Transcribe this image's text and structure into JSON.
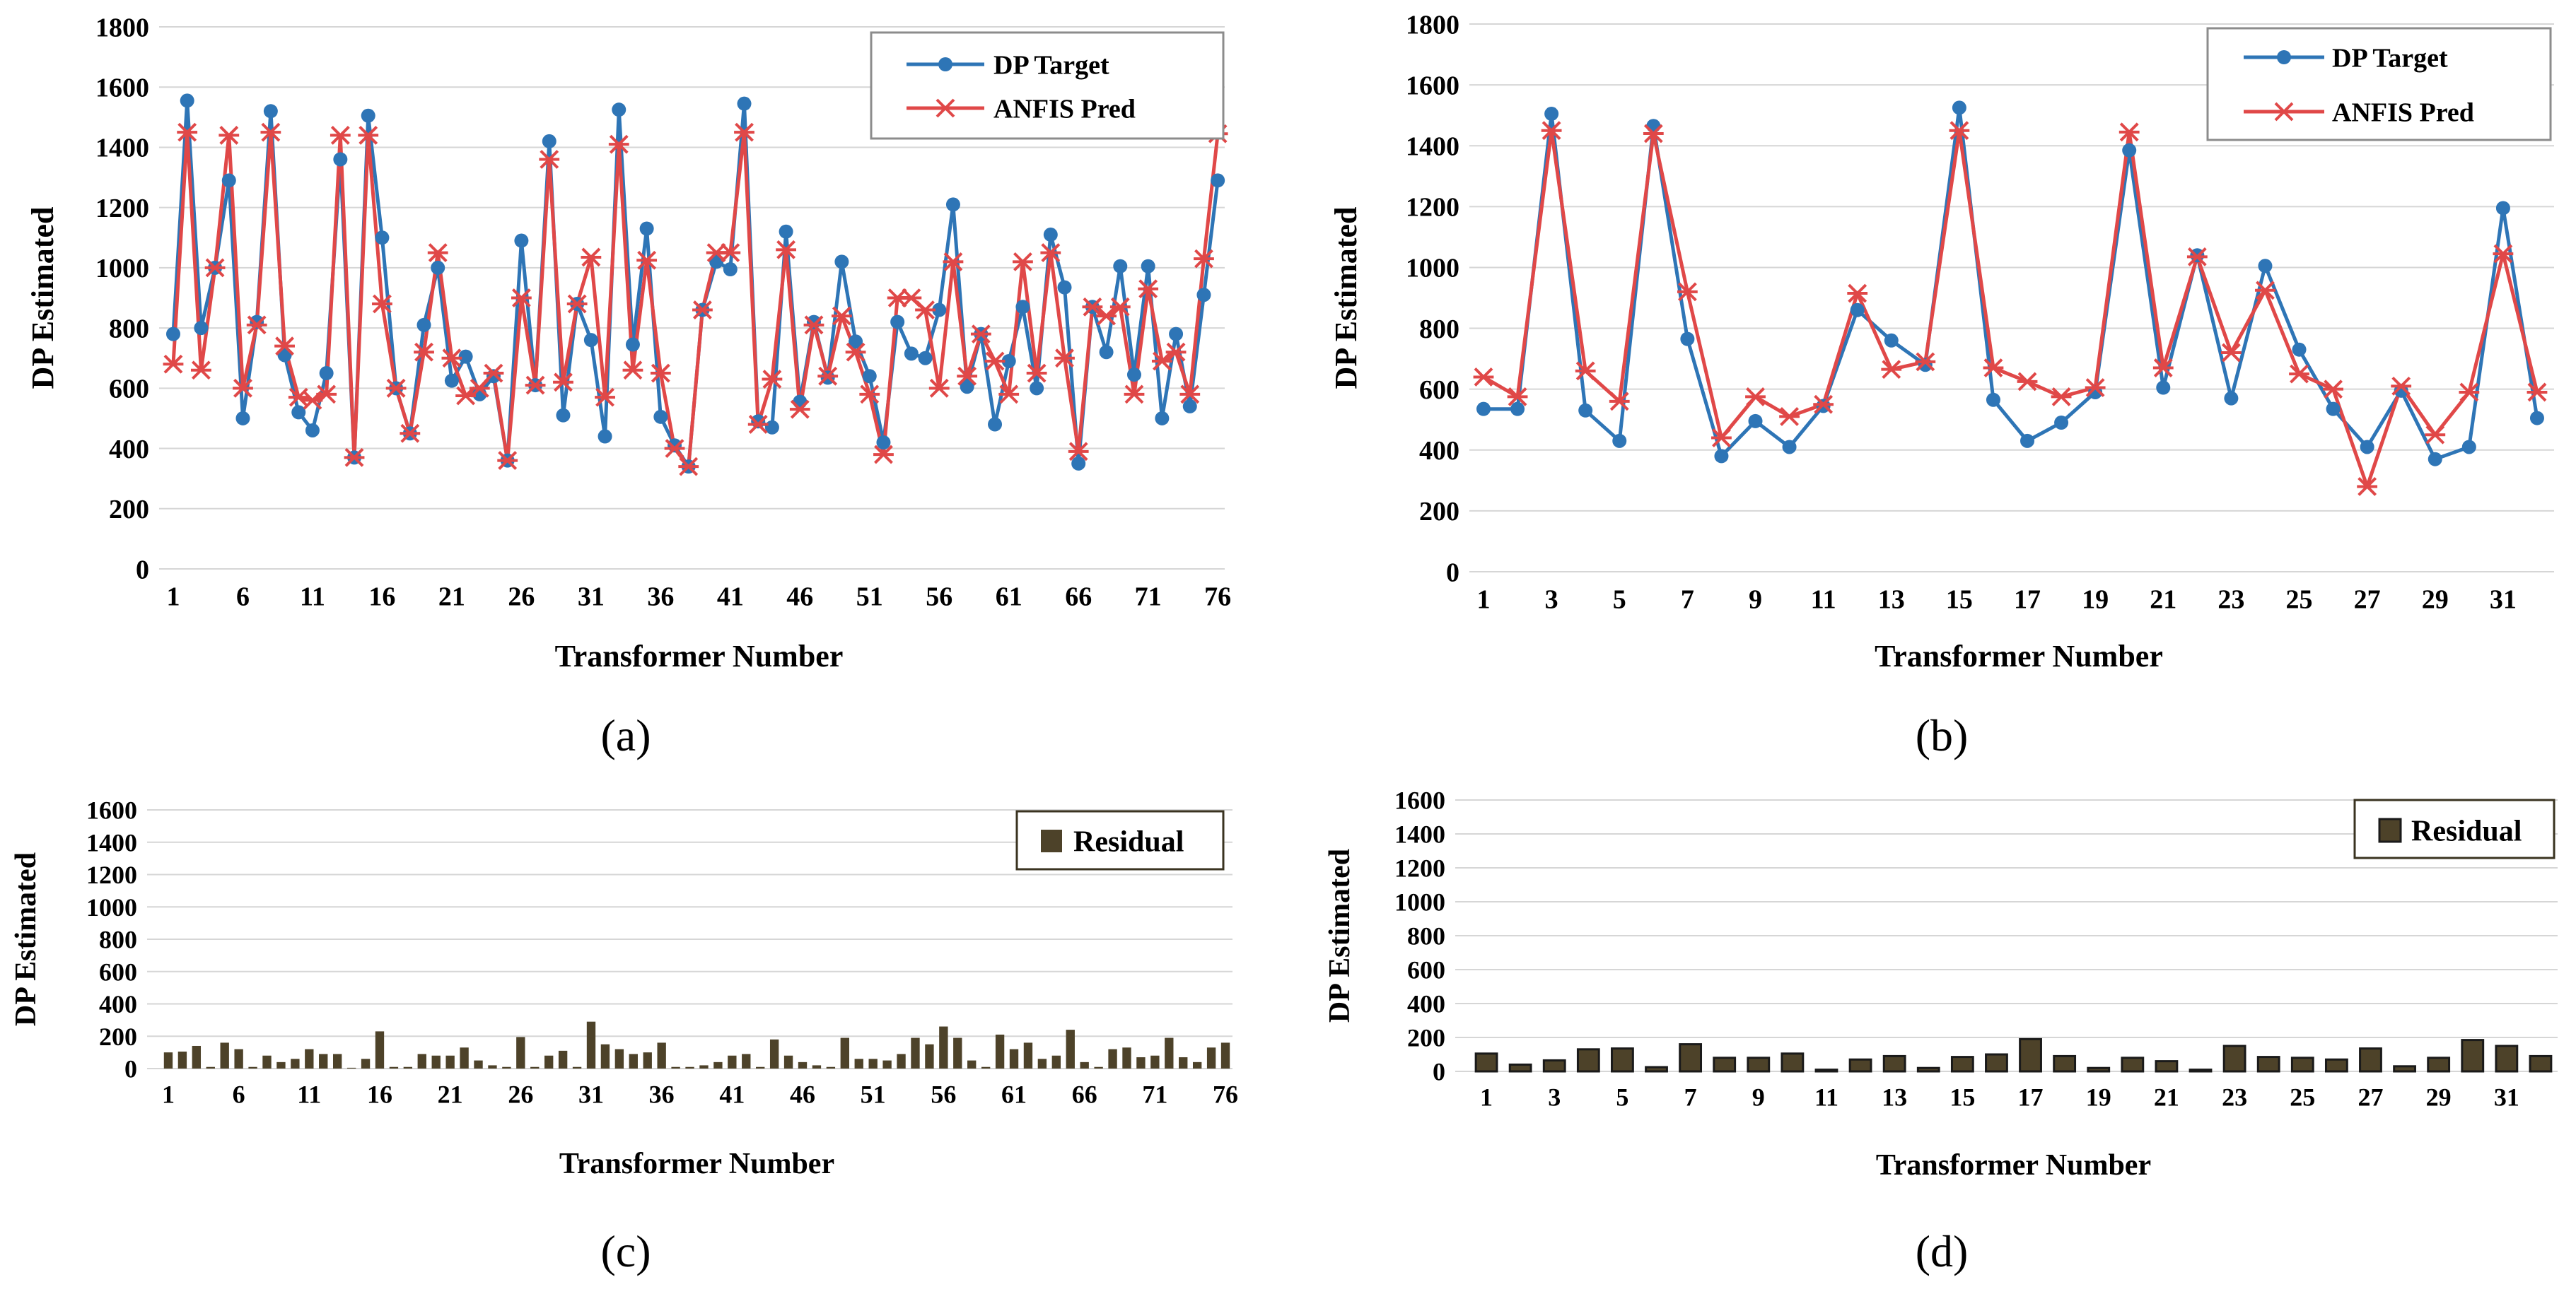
{
  "chart_data": [
    {
      "id": "a",
      "type": "line",
      "panel_label": "(a)",
      "xlabel": "Transformer Number",
      "ylabel": "DP Estimated",
      "ylim": [
        0,
        1800
      ],
      "yticks": [
        0,
        200,
        400,
        600,
        800,
        1000,
        1200,
        1400,
        1600,
        1800
      ],
      "xtick_labels": [
        "1",
        "6",
        "11",
        "16",
        "21",
        "26",
        "31",
        "36",
        "41",
        "46",
        "51",
        "56",
        "61",
        "66",
        "71",
        "76"
      ],
      "grid": true,
      "legend": "top-right",
      "x": [
        1,
        2,
        3,
        4,
        5,
        6,
        7,
        8,
        9,
        10,
        11,
        12,
        13,
        14,
        15,
        16,
        17,
        18,
        19,
        20,
        21,
        22,
        23,
        24,
        25,
        26,
        27,
        28,
        29,
        30,
        31,
        32,
        33,
        34,
        35,
        36,
        37,
        38,
        39,
        40,
        41,
        42,
        43,
        44,
        45,
        46,
        47,
        48,
        49,
        50,
        51,
        52,
        53,
        54,
        55,
        56,
        57,
        58,
        59,
        60,
        61,
        62,
        63,
        64,
        65,
        66,
        67,
        68,
        69,
        70,
        71,
        72,
        73,
        74,
        75,
        76
      ],
      "series": [
        {
          "name": "DP Target",
          "color": "#2E75B6",
          "marker": "circle",
          "values": [
            780,
            1555,
            800,
            1000,
            1290,
            500,
            820,
            1520,
            710,
            520,
            460,
            650,
            1360,
            370,
            1505,
            1100,
            600,
            450,
            810,
            1000,
            625,
            705,
            580,
            640,
            360,
            1090,
            610,
            1420,
            510,
            880,
            760,
            440,
            1525,
            745,
            1130,
            505,
            410,
            340,
            860,
            1020,
            995,
            1545,
            490,
            470,
            1120,
            555,
            820,
            635,
            1020,
            755,
            640,
            420,
            820,
            715,
            700,
            860,
            1210,
            605,
            780,
            480,
            690,
            870,
            600,
            1110,
            935,
            350,
            870,
            720,
            1005,
            645,
            1005,
            500,
            780,
            540,
            910,
            1290
          ]
        },
        {
          "name": "ANFIS Pred",
          "color": "#E04848",
          "marker": "x",
          "values": [
            680,
            1450,
            660,
            1000,
            1440,
            600,
            810,
            1450,
            740,
            570,
            560,
            580,
            1440,
            370,
            1440,
            880,
            600,
            450,
            720,
            1050,
            700,
            575,
            600,
            650,
            360,
            900,
            610,
            1360,
            620,
            880,
            1035,
            570,
            1410,
            660,
            1025,
            650,
            400,
            340,
            860,
            1050,
            1050,
            1450,
            480,
            630,
            1060,
            530,
            810,
            640,
            840,
            720,
            580,
            380,
            900,
            900,
            860,
            600,
            1020,
            640,
            780,
            690,
            580,
            1020,
            650,
            1050,
            700,
            390,
            870,
            840,
            870,
            580,
            930,
            690,
            720,
            580,
            1030,
            1445
          ]
        }
      ]
    },
    {
      "id": "b",
      "type": "line",
      "panel_label": "(b)",
      "xlabel": "Transformer Number",
      "ylabel": "DP Estimated",
      "ylim": [
        0,
        1800
      ],
      "yticks": [
        0,
        200,
        400,
        600,
        800,
        1000,
        1200,
        1400,
        1600,
        1800
      ],
      "xtick_labels": [
        "1",
        "3",
        "5",
        "7",
        "9",
        "11",
        "13",
        "15",
        "17",
        "19",
        "21",
        "23",
        "25",
        "27",
        "29",
        "31"
      ],
      "grid": true,
      "legend": "top-right",
      "x": [
        1,
        2,
        3,
        4,
        5,
        6,
        7,
        8,
        9,
        10,
        11,
        12,
        13,
        14,
        15,
        16,
        17,
        18,
        19,
        20,
        21,
        22,
        23,
        24,
        25,
        26,
        27,
        28,
        29,
        30,
        31,
        32
      ],
      "series": [
        {
          "name": "DP Target",
          "color": "#2E75B6",
          "marker": "circle",
          "values": [
            535,
            535,
            1505,
            530,
            430,
            1465,
            765,
            380,
            495,
            410,
            545,
            860,
            760,
            680,
            1525,
            565,
            430,
            490,
            590,
            1385,
            605,
            1040,
            570,
            1005,
            730,
            535,
            410,
            595,
            370,
            410,
            1195,
            505
          ]
        },
        {
          "name": "ANFIS Pred",
          "color": "#E04848",
          "marker": "x",
          "values": [
            640,
            575,
            1450,
            660,
            560,
            1440,
            920,
            440,
            575,
            510,
            550,
            915,
            665,
            690,
            1450,
            670,
            625,
            575,
            605,
            1445,
            670,
            1035,
            720,
            925,
            650,
            600,
            280,
            610,
            450,
            590,
            1045,
            590
          ]
        }
      ]
    },
    {
      "id": "c",
      "type": "bar",
      "panel_label": "(c)",
      "xlabel": "Transformer Number",
      "ylabel": "DP Estimated",
      "ylim": [
        0,
        1600
      ],
      "yticks": [
        0,
        200,
        400,
        600,
        800,
        1000,
        1200,
        1400,
        1600
      ],
      "xtick_labels": [
        "1",
        "6",
        "11",
        "16",
        "21",
        "26",
        "31",
        "36",
        "41",
        "46",
        "51",
        "56",
        "61",
        "66",
        "71",
        "76"
      ],
      "grid": true,
      "legend": "top-right",
      "x": [
        1,
        2,
        3,
        4,
        5,
        6,
        7,
        8,
        9,
        10,
        11,
        12,
        13,
        14,
        15,
        16,
        17,
        18,
        19,
        20,
        21,
        22,
        23,
        24,
        25,
        26,
        27,
        28,
        29,
        30,
        31,
        32,
        33,
        34,
        35,
        36,
        37,
        38,
        39,
        40,
        41,
        42,
        43,
        44,
        45,
        46,
        47,
        48,
        49,
        50,
        51,
        52,
        53,
        54,
        55,
        56,
        57,
        58,
        59,
        60,
        61,
        62,
        63,
        64,
        65,
        66,
        67,
        68,
        69,
        70,
        71,
        72,
        73,
        74,
        75,
        76
      ],
      "series": [
        {
          "name": "Residual",
          "color": "#4D4229",
          "values": [
            100,
            105,
            140,
            10,
            160,
            120,
            10,
            80,
            40,
            60,
            120,
            90,
            90,
            5,
            60,
            230,
            10,
            10,
            90,
            80,
            80,
            130,
            50,
            20,
            10,
            195,
            10,
            80,
            110,
            10,
            290,
            150,
            120,
            90,
            100,
            160,
            10,
            10,
            20,
            40,
            80,
            90,
            10,
            180,
            80,
            40,
            20,
            10,
            190,
            60,
            60,
            50,
            90,
            190,
            150,
            260,
            190,
            50,
            10,
            210,
            120,
            160,
            60,
            80,
            240,
            40,
            10,
            120,
            130,
            70,
            80,
            190,
            70,
            40,
            130,
            160
          ]
        }
      ]
    },
    {
      "id": "d",
      "type": "bar",
      "panel_label": "(d)",
      "xlabel": "Transformer Number",
      "ylabel": "DP Estimated",
      "ylim": [
        0,
        1600
      ],
      "yticks": [
        0,
        200,
        400,
        600,
        800,
        1000,
        1200,
        1400,
        1600
      ],
      "xtick_labels": [
        "1",
        "3",
        "5",
        "7",
        "9",
        "11",
        "13",
        "15",
        "17",
        "19",
        "21",
        "23",
        "25",
        "27",
        "29",
        "31"
      ],
      "grid": true,
      "legend": "top-right",
      "x": [
        1,
        2,
        3,
        4,
        5,
        6,
        7,
        8,
        9,
        10,
        11,
        12,
        13,
        14,
        15,
        16,
        17,
        18,
        19,
        20,
        21,
        22,
        23,
        24,
        25,
        26,
        27,
        28,
        29,
        30,
        31,
        32
      ],
      "series": [
        {
          "name": "Residual",
          "color": "#4D4229",
          "values": [
            105,
            40,
            65,
            130,
            135,
            25,
            160,
            80,
            80,
            105,
            10,
            70,
            90,
            20,
            85,
            100,
            190,
            90,
            20,
            80,
            60,
            10,
            150,
            85,
            80,
            70,
            135,
            30,
            80,
            185,
            150,
            90
          ]
        }
      ]
    }
  ]
}
